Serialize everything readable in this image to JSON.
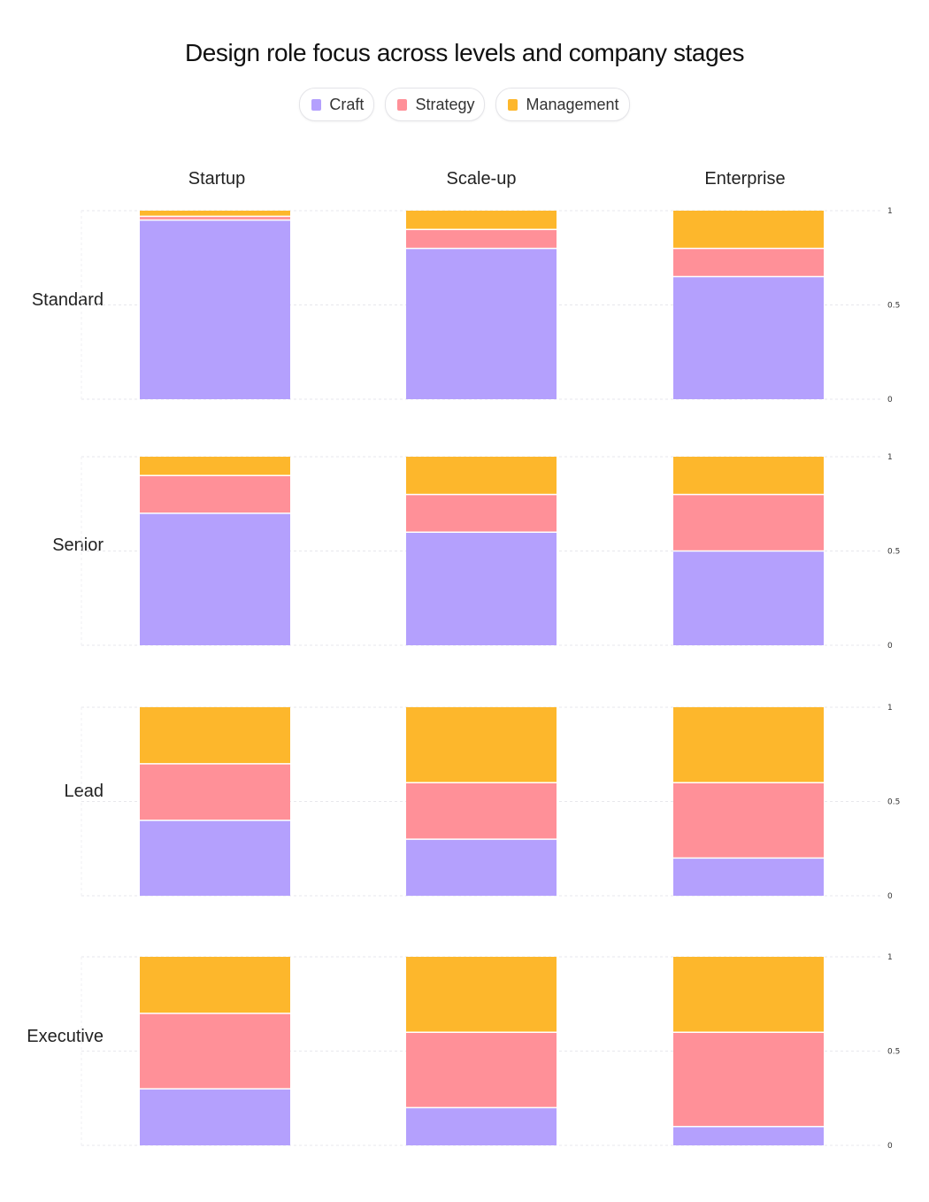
{
  "title": "Design role focus across levels and company stages",
  "legend": [
    {
      "name": "Craft",
      "color": "#b4a0fd"
    },
    {
      "name": "Strategy",
      "color": "#ff9098"
    },
    {
      "name": "Management",
      "color": "#fdb72c"
    }
  ],
  "chart_data": {
    "type": "bar",
    "stacked": true,
    "layout": "facet-grid",
    "title": "Design role focus across levels and company stages",
    "columns": [
      "Startup",
      "Scale-up",
      "Enterprise"
    ],
    "rows": [
      "Standard",
      "Senior",
      "Lead",
      "Executive"
    ],
    "series": [
      "Craft",
      "Strategy",
      "Management"
    ],
    "colors": {
      "Craft": "#b4a0fd",
      "Strategy": "#ff9098",
      "Management": "#fdb72c"
    },
    "ylim": [
      0,
      1
    ],
    "yticks": [
      "0",
      "0.5",
      "1"
    ],
    "grid": true,
    "legend_position": "top",
    "values": [
      [
        [
          0.95,
          0.02,
          0.03
        ],
        [
          0.8,
          0.1,
          0.1
        ],
        [
          0.65,
          0.15,
          0.2
        ]
      ],
      [
        [
          0.7,
          0.2,
          0.1
        ],
        [
          0.6,
          0.2,
          0.2
        ],
        [
          0.5,
          0.3,
          0.2
        ]
      ],
      [
        [
          0.4,
          0.3,
          0.3
        ],
        [
          0.3,
          0.3,
          0.4
        ],
        [
          0.2,
          0.4,
          0.4
        ]
      ],
      [
        [
          0.3,
          0.4,
          0.3
        ],
        [
          0.2,
          0.4,
          0.4
        ],
        [
          0.1,
          0.5,
          0.4
        ]
      ]
    ]
  }
}
